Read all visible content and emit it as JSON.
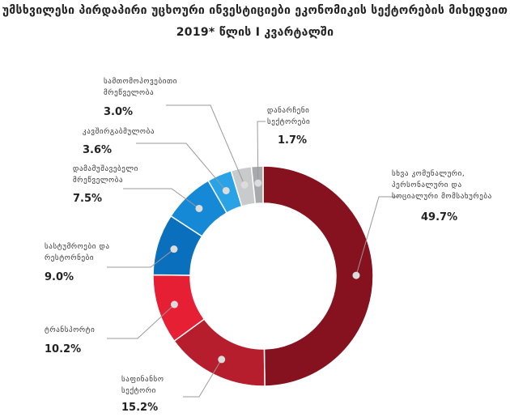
{
  "title_line1": "უმსხვილესი პირდაპირი უცხოური ინვესტიციები ეკონომიკის სექტორების მიხედვით",
  "title_line2": "2019* წლის I კვარტალში",
  "chart_data": {
    "type": "pie",
    "variant": "donut",
    "title": "უმსხვილესი პირდაპირი უცხოური ინვესტიციები ეკონომიკის სექტორების მიხედვით 2019* წლის I კვარტალში",
    "unit": "%",
    "slices": [
      {
        "label_lines": [
          "სხვა კომუნალური,",
          "პერსონალური და",
          "სოციალური მომსახურება"
        ],
        "value": 49.7,
        "value_text": "49.7%",
        "color": "#86111f"
      },
      {
        "label_lines": [
          "საფინანსო",
          "სექტორი"
        ],
        "value": 15.2,
        "value_text": "15.2%",
        "color": "#b61d2d"
      },
      {
        "label_lines": [
          "ტრანსპორტი"
        ],
        "value": 10.2,
        "value_text": "10.2%",
        "color": "#e61f35"
      },
      {
        "label_lines": [
          "სასტუმროები და",
          "რესტორნები"
        ],
        "value": 9.0,
        "value_text": "9.0%",
        "color": "#0a70bd"
      },
      {
        "label_lines": [
          "დამამუშავებელი",
          "მრეწველობა"
        ],
        "value": 7.5,
        "value_text": "7.5%",
        "color": "#1589d6"
      },
      {
        "label_lines": [
          "კავშირგაბმულობა"
        ],
        "value": 3.6,
        "value_text": "3.6%",
        "color": "#2aa2e6"
      },
      {
        "label_lines": [
          "სამთომოპოვებითი",
          "მრეწველობა"
        ],
        "value": 3.0,
        "value_text": "3.0%",
        "color": "#c9cacb"
      },
      {
        "label_lines": [
          "დანარჩენი",
          "სექტორები"
        ],
        "value": 1.7,
        "value_text": "1.7%",
        "color": "#a8a9ab"
      }
    ]
  }
}
